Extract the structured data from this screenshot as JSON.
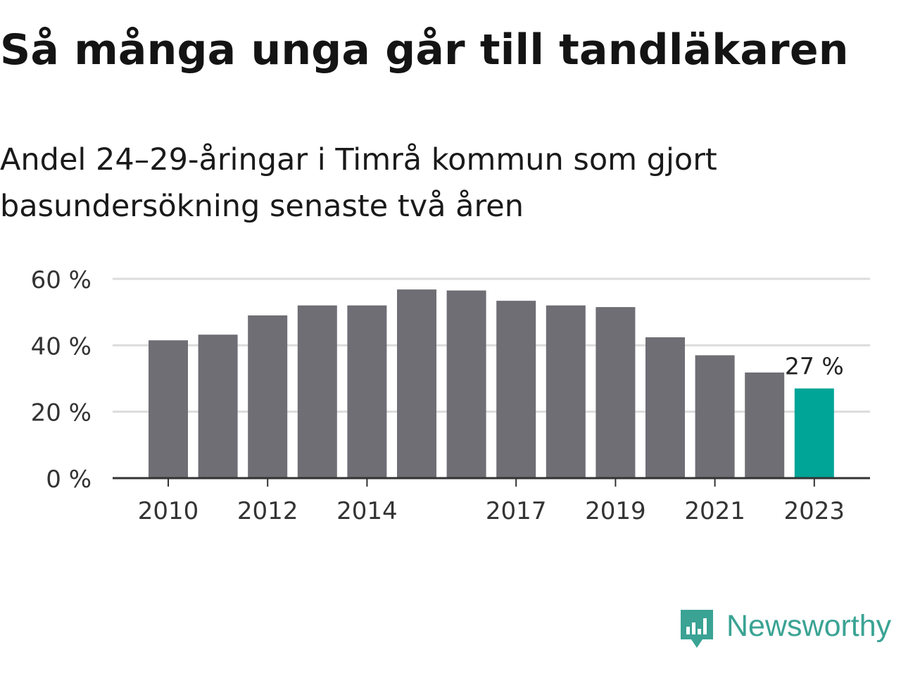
{
  "title": "Så många unga går till tandläkaren",
  "subtitle": "Andel 24–29-åringar i Timrå kommun som gjort basundersökning senaste två åren",
  "logo": {
    "text": "Newsworthy",
    "icon": "newsworthy-logo-icon"
  },
  "colors": {
    "bar": "#6f6e75",
    "highlight": "#00a597",
    "grid": "#dcdcdc",
    "axis": "#333333",
    "tick_text": "#333333",
    "logo": "#3aa394"
  },
  "chart_data": {
    "type": "bar",
    "title": "Så många unga går till tandläkaren",
    "subtitle": "Andel 24–29-åringar i Timrå kommun som gjort basundersökning senaste två åren",
    "categories": [
      "2010",
      "2011",
      "2012",
      "2013",
      "2014",
      "2015",
      "2016",
      "2017",
      "2018",
      "2019",
      "2020",
      "2021",
      "2022",
      "2023"
    ],
    "values": [
      41.5,
      43.2,
      49,
      52,
      52,
      56.8,
      56.5,
      53.4,
      52,
      51.5,
      42.4,
      37,
      31.8,
      27
    ],
    "x_tick_labels": [
      "2010",
      "2012",
      "2014",
      "2017",
      "2019",
      "2021",
      "2023"
    ],
    "y_ticks": [
      0,
      20,
      40,
      60
    ],
    "y_tick_labels": [
      "0 %",
      "20 %",
      "40 %",
      "60 %"
    ],
    "ylim": [
      0,
      60
    ],
    "grid": true,
    "highlight_category": "2023",
    "annotation": {
      "category": "2023",
      "text": "27 %"
    },
    "xlabel": "",
    "ylabel": ""
  }
}
